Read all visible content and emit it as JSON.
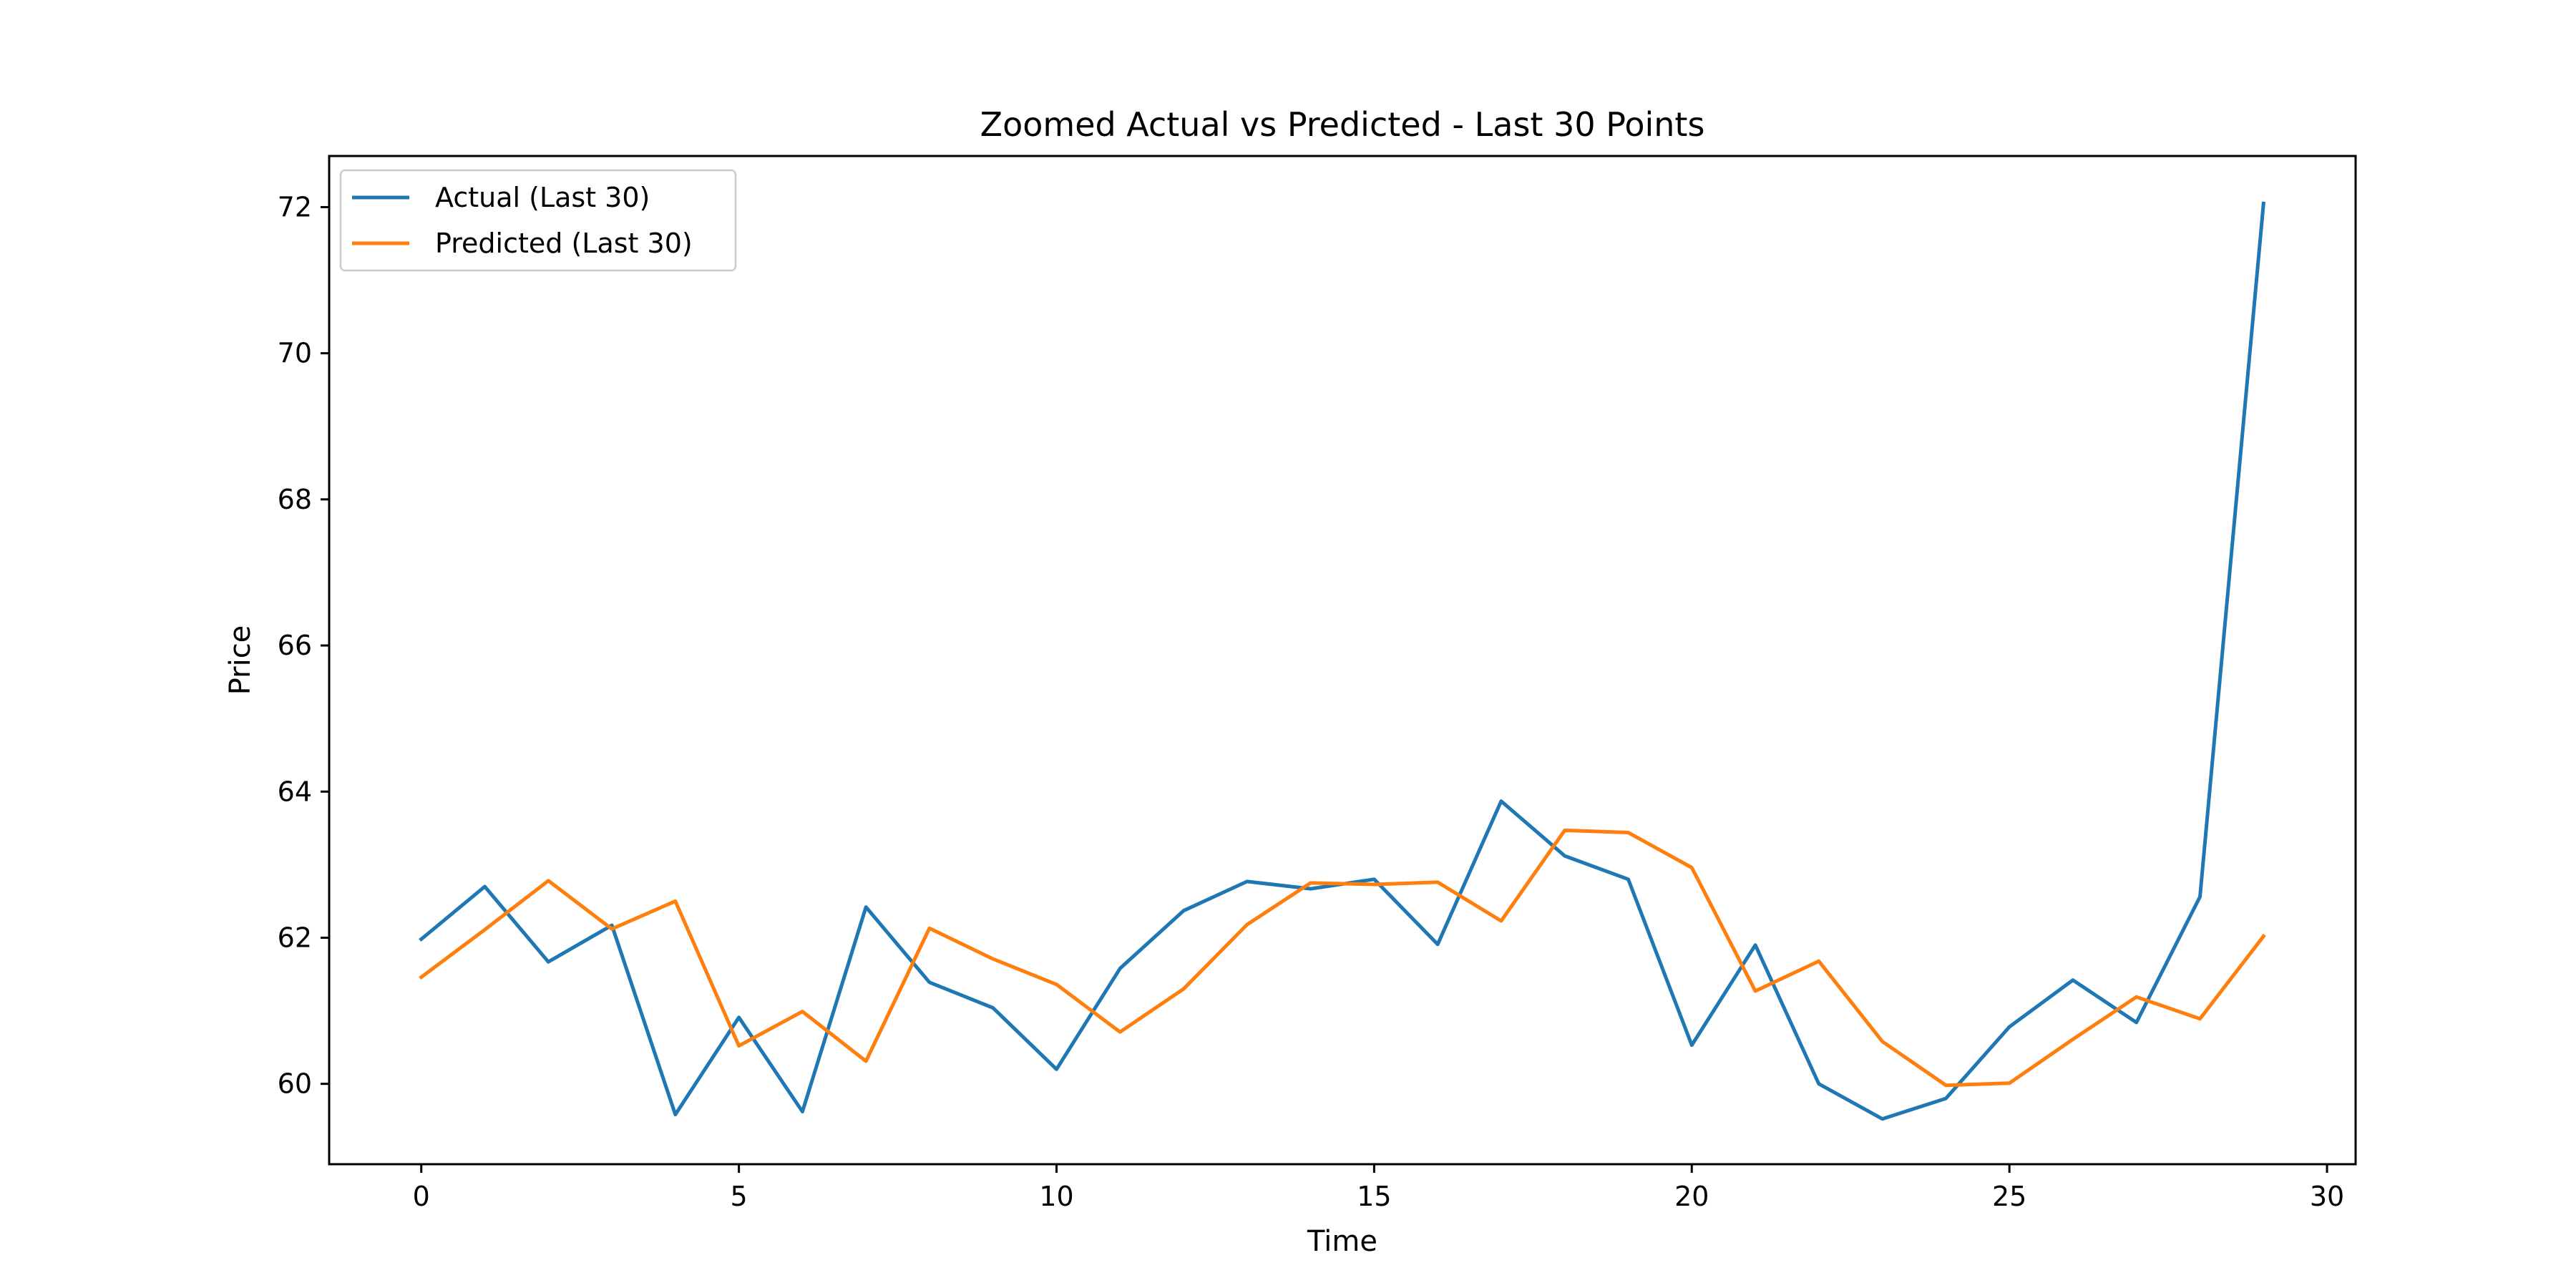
{
  "chart_data": {
    "type": "line",
    "title": "Zoomed Actual vs Predicted - Last 30 Points",
    "xlabel": "Time",
    "ylabel": "Price",
    "xlim": [
      -1.45,
      30.45
    ],
    "ylim": [
      58.9,
      72.7
    ],
    "xticks": [
      0,
      5,
      10,
      15,
      20,
      25,
      30
    ],
    "yticks": [
      60,
      62,
      64,
      66,
      68,
      70,
      72
    ],
    "grid": false,
    "legend_position": "top-left",
    "x": [
      0,
      1,
      2,
      3,
      4,
      5,
      6,
      7,
      8,
      9,
      10,
      11,
      12,
      13,
      14,
      15,
      16,
      17,
      18,
      19,
      20,
      21,
      22,
      23,
      24,
      25,
      26,
      27,
      28,
      29
    ],
    "series": [
      {
        "name": "Actual (Last 30)",
        "color": "#1f77b4",
        "values": [
          61.98,
          62.7,
          61.67,
          62.17,
          59.58,
          60.91,
          59.62,
          62.42,
          61.39,
          61.04,
          60.2,
          61.58,
          62.37,
          62.77,
          62.67,
          62.8,
          61.91,
          63.87,
          63.12,
          62.8,
          60.53,
          61.9,
          60.0,
          59.52,
          59.8,
          60.78,
          61.42,
          60.84,
          62.56,
          72.05
        ]
      },
      {
        "name": "Predicted (Last 30)",
        "color": "#ff7f0e",
        "values": [
          61.46,
          62.11,
          62.78,
          62.12,
          62.5,
          60.52,
          60.99,
          60.31,
          62.13,
          61.71,
          61.36,
          60.71,
          61.3,
          62.18,
          62.75,
          62.73,
          62.76,
          62.23,
          63.47,
          63.44,
          62.96,
          61.27,
          61.68,
          60.58,
          59.98,
          60.01,
          60.61,
          61.19,
          60.89,
          62.02
        ]
      }
    ]
  }
}
